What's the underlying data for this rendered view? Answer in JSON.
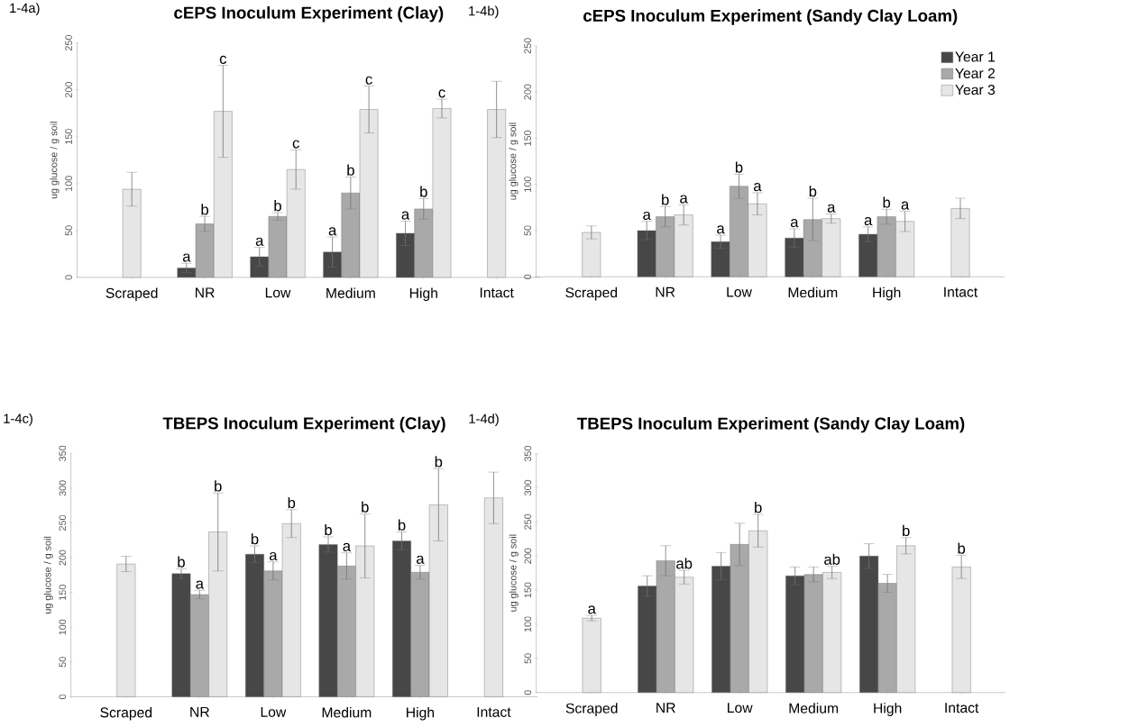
{
  "chart_data": [
    {
      "type": "bar",
      "title": "cEPS Inoculum Experiment (Clay)",
      "ylabel": "ug glucose / g soil",
      "annotations": [
        "1-4a)"
      ],
      "categories": [
        "Scraped",
        "NR",
        "Low",
        "Medium",
        "High",
        "Intact"
      ],
      "ylim": [
        0,
        250
      ],
      "yticks": [
        0,
        50,
        100,
        150,
        200,
        250
      ],
      "series": [
        {
          "color": "#474747",
          "values": [
            null,
            10,
            22,
            27,
            47,
            null
          ],
          "errors": [
            null,
            5,
            10,
            16,
            13,
            null
          ],
          "value_labels": [
            null,
            "a",
            "a",
            "a",
            "a",
            null
          ]
        },
        {
          "color": "#a9a9a9",
          "values": [
            null,
            57,
            65,
            90,
            73,
            null
          ],
          "errors": [
            null,
            8,
            4,
            17,
            11,
            null
          ],
          "value_labels": [
            null,
            "b",
            "b",
            "b",
            "b",
            null
          ]
        },
        {
          "color": "#e6e6e6",
          "values": [
            94,
            177,
            115,
            179,
            180,
            179
          ],
          "errors": [
            18,
            49,
            21,
            25,
            10,
            30
          ],
          "value_labels": [
            null,
            "c",
            "c",
            "c",
            "c",
            null
          ]
        }
      ]
    },
    {
      "type": "bar",
      "title": "cEPS Inoculum Experiment (Sandy Clay Loam)",
      "ylabel": "ug glucose / g soil",
      "annotations": [
        "1-4b)"
      ],
      "categories": [
        "Scraped",
        "NR",
        "Low",
        "Medium",
        "High",
        "Intact"
      ],
      "ylim": [
        0,
        250
      ],
      "yticks": [
        0,
        50,
        100,
        150,
        200,
        250
      ],
      "legend": "top right",
      "series": [
        {
          "name": "Year 1",
          "color": "#474747",
          "values": [
            null,
            50,
            38,
            42,
            46,
            null
          ],
          "errors": [
            null,
            10,
            7,
            10,
            8,
            null
          ],
          "value_labels": [
            null,
            "a",
            "a",
            "a",
            "a",
            null
          ]
        },
        {
          "name": "Year 2",
          "color": "#a9a9a9",
          "values": [
            null,
            65,
            98,
            62,
            65,
            null
          ],
          "errors": [
            null,
            11,
            13,
            23,
            8,
            null
          ],
          "value_labels": [
            null,
            "b",
            "b",
            "b",
            "b",
            null
          ]
        },
        {
          "name": "Year 3",
          "color": "#e6e6e6",
          "values": [
            48,
            67,
            79,
            63,
            60,
            74
          ],
          "errors": [
            7,
            11,
            12,
            5,
            11,
            11
          ],
          "value_labels": [
            null,
            "a",
            "a",
            "a",
            "a",
            null
          ]
        }
      ]
    },
    {
      "type": "bar",
      "title": "TBEPS Inoculum Experiment (Clay)",
      "ylabel": "ug glucose / g soil",
      "annotations": [
        "1-4c)"
      ],
      "categories": [
        "Scraped",
        "NR",
        "Low",
        "Medium",
        "High",
        "Intact"
      ],
      "ylim": [
        0,
        350
      ],
      "yticks": [
        0,
        50,
        100,
        150,
        200,
        250,
        300,
        350
      ],
      "series": [
        {
          "color": "#474747",
          "values": [
            null,
            177,
            205,
            219,
            224,
            null
          ],
          "errors": [
            null,
            7,
            12,
            11,
            13,
            null
          ],
          "value_labels": [
            null,
            "b",
            "b",
            "b",
            "b",
            null
          ]
        },
        {
          "color": "#a9a9a9",
          "values": [
            null,
            147,
            181,
            188,
            179,
            null
          ],
          "errors": [
            null,
            6,
            13,
            19,
            10,
            null
          ],
          "value_labels": [
            null,
            "a",
            "a",
            "a",
            "a",
            null
          ]
        },
        {
          "color": "#e6e6e6",
          "values": [
            191,
            237,
            249,
            217,
            276,
            286
          ],
          "errors": [
            11,
            56,
            20,
            46,
            52,
            37
          ],
          "value_labels": [
            null,
            "b",
            "b",
            "b",
            "b",
            null
          ]
        }
      ]
    },
    {
      "type": "bar",
      "title": "TBEPS Inoculum Experiment (Sandy Clay Loam)",
      "ylabel": "ug glucose / g soil",
      "annotations": [
        "1-4d)"
      ],
      "categories": [
        "Scraped",
        "NR",
        "Low",
        "Medium",
        "High",
        "Intact"
      ],
      "ylim": [
        0,
        350
      ],
      "yticks": [
        0,
        50,
        100,
        150,
        200,
        250,
        300,
        350
      ],
      "series": [
        {
          "color": "#474747",
          "values": [
            null,
            156,
            185,
            171,
            200,
            null
          ],
          "errors": [
            null,
            15,
            20,
            13,
            18,
            null
          ]
        },
        {
          "color": "#a9a9a9",
          "values": [
            null,
            193,
            217,
            173,
            160,
            null
          ],
          "errors": [
            null,
            22,
            31,
            11,
            13,
            null
          ]
        },
        {
          "color": "#e6e6e6",
          "values": [
            109,
            169,
            237,
            176,
            215,
            184
          ],
          "errors": [
            4,
            10,
            24,
            9,
            12,
            17
          ],
          "value_labels": [
            "a",
            "ab",
            "b",
            "ab",
            "b",
            "b"
          ]
        }
      ]
    }
  ]
}
